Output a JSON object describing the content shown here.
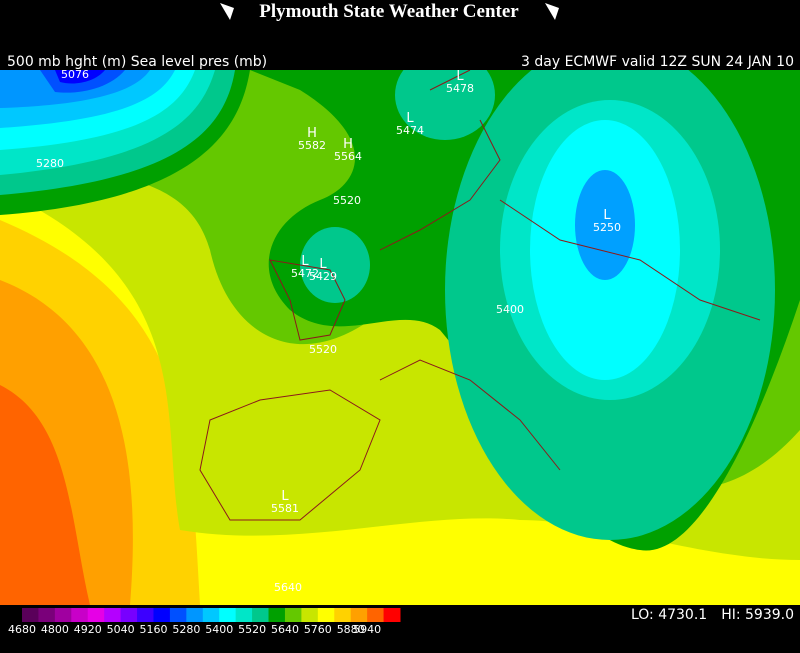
{
  "header": {
    "title": "Plymouth State Weather Center",
    "subtitle_left": "500 mb hght (m) Sea level pres (mb)",
    "subtitle_right": "3 day ECMWF valid 12Z SUN 24 JAN 10"
  },
  "contour_labels": [
    5076,
    5280,
    5520,
    5520,
    5400,
    5640
  ],
  "centers": [
    {
      "symbol": "L",
      "value": 5478
    },
    {
      "symbol": "L",
      "value": 5474
    },
    {
      "symbol": "H",
      "value": 5582
    },
    {
      "symbol": "H",
      "value": 5564
    },
    {
      "symbol": "L",
      "value": 5250
    },
    {
      "symbol": "L",
      "value": 5472
    },
    {
      "symbol": "L",
      "value": 5429
    },
    {
      "symbol": "L",
      "value": 5581
    }
  ],
  "colorbar": {
    "ticks": [
      4680,
      4800,
      4920,
      5040,
      5160,
      5280,
      5400,
      5520,
      5640,
      5760,
      5880,
      5940
    ],
    "colors": [
      "#5a005a",
      "#7a007a",
      "#a000a0",
      "#c800c8",
      "#e600e6",
      "#b400ff",
      "#7800ff",
      "#3c00ff",
      "#0000ff",
      "#0050ff",
      "#0096ff",
      "#00c8ff",
      "#00ffff",
      "#00e6c8",
      "#00c88c",
      "#00a000",
      "#64c800",
      "#c8e600",
      "#ffff00",
      "#ffd200",
      "#ffa000",
      "#ff6400",
      "#ff0000"
    ]
  },
  "extremes": {
    "lo": "LO: 4730.1",
    "hi": "HI: 5939.0"
  }
}
